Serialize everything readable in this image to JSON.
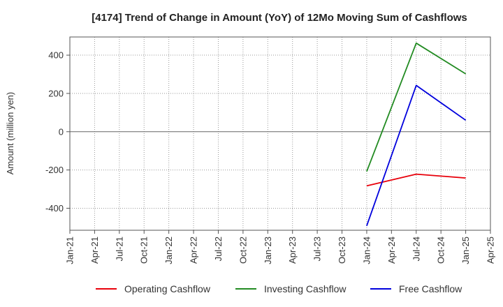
{
  "chart_data": {
    "type": "line",
    "title": "[4174]  Trend of Change in Amount (YoY) of 12Mo Moving Sum of Cashflows",
    "ylabel": "Amount (million yen)",
    "xlabel": "",
    "ylim": [
      -515,
      495
    ],
    "yticks": [
      -400,
      -200,
      0,
      200,
      400
    ],
    "categories": [
      "Jan-21",
      "Apr-21",
      "Jul-21",
      "Oct-21",
      "Jan-22",
      "Apr-22",
      "Jul-22",
      "Oct-22",
      "Jan-23",
      "Apr-23",
      "Jul-23",
      "Oct-23",
      "Jan-24",
      "Apr-24",
      "Jul-24",
      "Oct-24",
      "Jan-25",
      "Apr-25"
    ],
    "grid": true,
    "legend": "bottom",
    "series": [
      {
        "name": "Operating Cashflow",
        "color": "#e8000b",
        "points": [
          {
            "x": "Jan-24",
            "y": -283
          },
          {
            "x": "Jul-24",
            "y": -222
          },
          {
            "x": "Jan-25",
            "y": -242
          }
        ]
      },
      {
        "name": "Investing Cashflow",
        "color": "#228b22",
        "points": [
          {
            "x": "Jan-24",
            "y": -208
          },
          {
            "x": "Jul-24",
            "y": 463
          },
          {
            "x": "Jan-25",
            "y": 302
          }
        ]
      },
      {
        "name": "Free Cashflow",
        "color": "#0000dd",
        "points": [
          {
            "x": "Jan-24",
            "y": -492
          },
          {
            "x": "Jul-24",
            "y": 242
          },
          {
            "x": "Jan-25",
            "y": 60
          }
        ]
      }
    ]
  }
}
